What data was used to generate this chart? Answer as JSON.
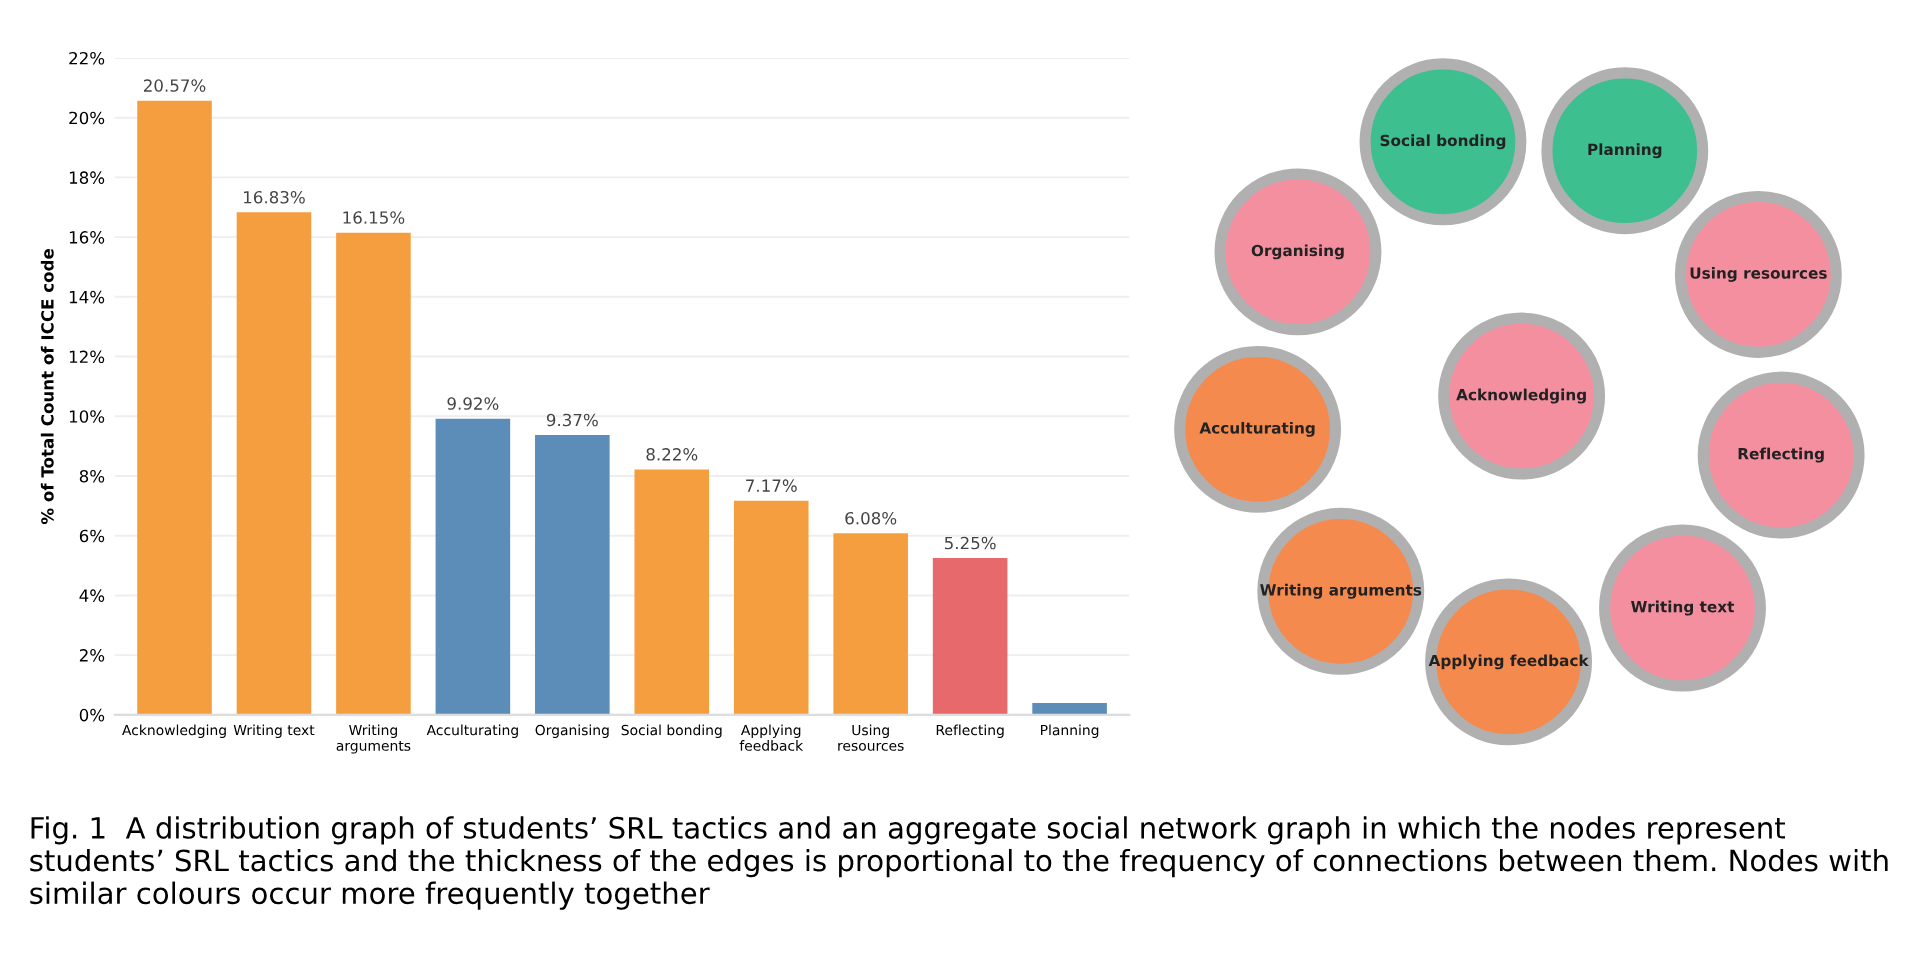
{
  "chart_data": [
    {
      "type": "bar",
      "ylabel": "% of Total Count of ICCE code",
      "categories": [
        "Acknowledging",
        "Writing text",
        "Writing\narguments",
        "Acculturating",
        "Organising",
        "Social bonding",
        "Applying\nfeedback",
        "Using\nresources",
        "Reflecting",
        "Planning"
      ],
      "values": [
        20.57,
        16.83,
        16.15,
        9.92,
        9.37,
        8.22,
        7.17,
        6.08,
        5.25,
        0.4
      ],
      "colors": [
        "#f59e3f",
        "#f59e3f",
        "#f59e3f",
        "#5b8db8",
        "#5b8db8",
        "#f59e3f",
        "#f59e3f",
        "#f59e3f",
        "#e8696b",
        "#5b8db8"
      ],
      "value_labels": [
        "20.57%",
        "16.83%",
        "16.15%",
        "9.92%",
        "9.37%",
        "8.22%",
        "7.17%",
        "6.08%",
        "5.25%",
        null
      ],
      "ylim": [
        0,
        22
      ],
      "yticks": [
        {
          "value": 0,
          "label": "0%"
        },
        {
          "value": 2,
          "label": "2%"
        },
        {
          "value": 4,
          "label": "4%"
        },
        {
          "value": 6,
          "label": "6%"
        },
        {
          "value": 8,
          "label": "8%"
        },
        {
          "value": 10,
          "label": "10%"
        },
        {
          "value": 12,
          "label": "12%"
        },
        {
          "value": 14,
          "label": "14%"
        },
        {
          "value": 16,
          "label": "16%"
        },
        {
          "value": 18,
          "label": "18%"
        },
        {
          "value": 20,
          "label": "20%"
        },
        {
          "value": 22,
          "label": "22%"
        }
      ],
      "grid": "y",
      "annotations": [
        "Fig. 1  A distribution graph of students’ SRL tactics and an aggregate social network graph in which the nodes represent students’ SRL tactics and the thickness of the edges is proportional to the frequency of connections between them. Nodes with similar colours occur more frequently together"
      ]
    },
    {
      "type": "other",
      "categories": [
        "Social bonding",
        "Planning",
        "Using resources",
        "Reflecting",
        "Writing text",
        "Applying feedback",
        "Writing arguments",
        "Acculturating",
        "Organising",
        "Acknowledging"
      ],
      "colors": [
        "#3dbf8f",
        "#3dbf8f",
        "#f48fa0",
        "#f48fa0",
        "#f48fa0",
        "#f58a4f",
        "#f58a4f",
        "#f58a4f",
        "#f48fa0",
        "#f48fa0"
      ]
    }
  ]
}
